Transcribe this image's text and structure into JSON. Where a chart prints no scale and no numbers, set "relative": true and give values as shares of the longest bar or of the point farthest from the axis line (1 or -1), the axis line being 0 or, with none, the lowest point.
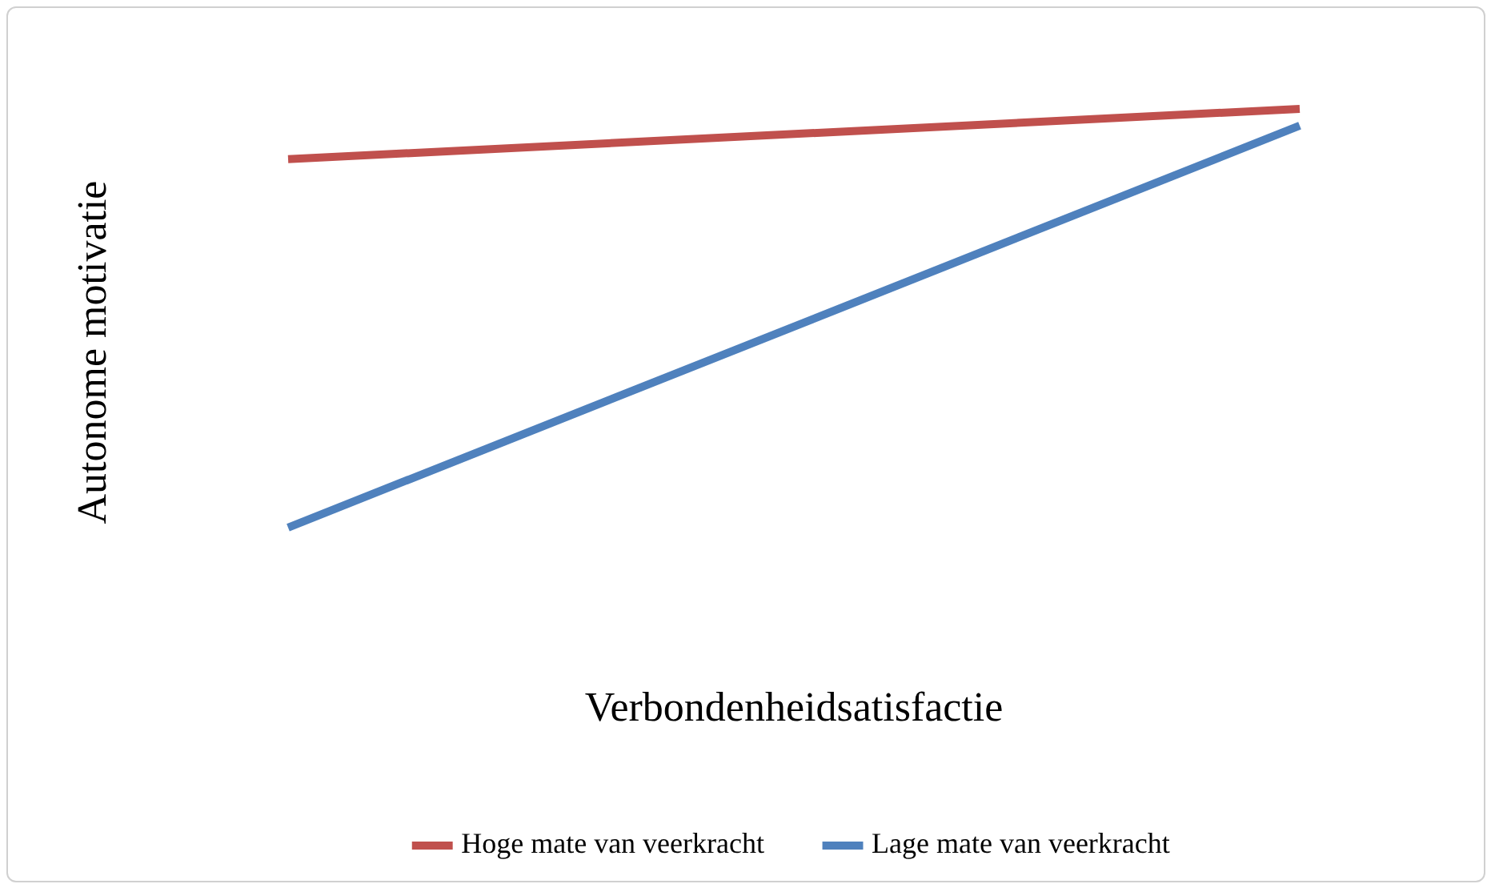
{
  "chart_data": {
    "type": "line",
    "relative": true,
    "xlabel": "Verbondenheidsatisfactie",
    "ylabel": "Autonome motivatie",
    "categories": [
      null,
      null
    ],
    "legend": "bottom",
    "marker": "none",
    "series": [
      {
        "name": "Hoge mate van veerkracht",
        "color": "#c0504d",
        "values": [
          0.88,
          1
        ]
      },
      {
        "name": "Lage mate van veerkracht",
        "color": "#4f81bd",
        "values": [
          0,
          0.96
        ]
      }
    ]
  }
}
